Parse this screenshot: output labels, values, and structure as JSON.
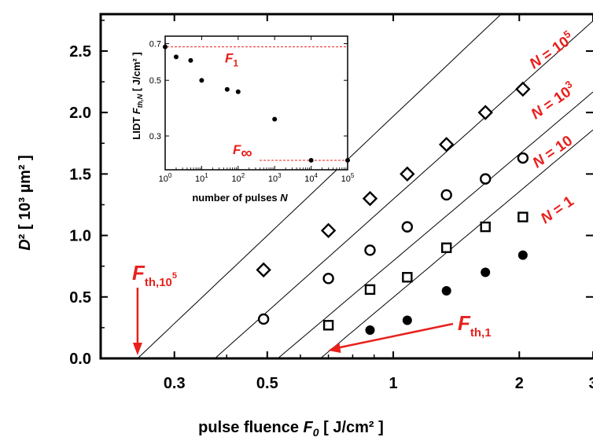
{
  "colors": {
    "annotation": "#e8201c",
    "ink": "#000000"
  },
  "chart_data": [
    {
      "type": "scatter",
      "xscale": "log",
      "xlabel_prefix": "pulse fluence ",
      "xlabel_var": "F",
      "xlabel_sub": "0",
      "xlabel_unit": " [ J/cm² ]",
      "ylabel_var": "D",
      "ylabel_rest": "² [ 10³ µm² ]",
      "xlim": [
        0.2,
        3.0
      ],
      "ylim": [
        0,
        2.8
      ],
      "xticks": [
        {
          "value": 0.3,
          "label": "0.3"
        },
        {
          "value": 0.5,
          "label": "0.5"
        },
        {
          "value": 1,
          "label": "1"
        },
        {
          "value": 2,
          "label": "2"
        },
        {
          "value": 3,
          "label": "3"
        }
      ],
      "yticks": [
        {
          "value": 0.0,
          "label": "0.0"
        },
        {
          "value": 0.5,
          "label": "0.5"
        },
        {
          "value": 1.0,
          "label": "1.0"
        },
        {
          "value": 1.5,
          "label": "1.5"
        },
        {
          "value": 2.0,
          "label": "2.0"
        },
        {
          "value": 2.5,
          "label": "2.5"
        }
      ],
      "series": [
        {
          "name": "N = 1",
          "label_n": "1",
          "marker": "filled-circle",
          "points": [
            [
              0.88,
              0.23
            ],
            [
              1.08,
              0.31
            ],
            [
              1.34,
              0.55
            ],
            [
              1.66,
              0.7
            ],
            [
              2.04,
              0.84
            ]
          ],
          "fit": {
            "threshold": 0.67,
            "slope": 1.24
          }
        },
        {
          "name": "N = 10",
          "label_n": "10",
          "marker": "square",
          "points": [
            [
              0.7,
              0.27
            ],
            [
              0.88,
              0.56
            ],
            [
              1.08,
              0.66
            ],
            [
              1.34,
              0.9
            ],
            [
              1.66,
              1.07
            ],
            [
              2.04,
              1.15
            ]
          ],
          "fit": {
            "threshold": 0.53,
            "slope": 1.25
          }
        },
        {
          "name": "N = 10³",
          "label_n": "10",
          "label_exp": "3",
          "marker": "open-circle",
          "points": [
            [
              0.49,
              0.32
            ],
            [
              0.7,
              0.65
            ],
            [
              0.88,
              0.88
            ],
            [
              1.08,
              1.07
            ],
            [
              1.34,
              1.33
            ],
            [
              1.66,
              1.46
            ],
            [
              2.04,
              1.63
            ]
          ],
          "fit": {
            "threshold": 0.375,
            "slope": 1.32
          }
        },
        {
          "name": "N = 10⁵",
          "label_n": "10",
          "label_exp": "5",
          "marker": "diamond",
          "points": [
            [
              0.49,
              0.72
            ],
            [
              0.7,
              1.04
            ],
            [
              0.88,
              1.3
            ],
            [
              1.08,
              1.5
            ],
            [
              1.34,
              1.74
            ],
            [
              1.66,
              2.0
            ],
            [
              2.04,
              2.19
            ]
          ],
          "fit": {
            "threshold": 0.245,
            "slope": 1.4
          }
        }
      ],
      "annotations": {
        "fth_high": {
          "base": "F",
          "sub": "th,10",
          "sup": "5",
          "x": 0.245
        },
        "fth_low": {
          "base": "F",
          "sub": "th,1",
          "x": 0.67
        }
      }
    },
    {
      "type": "scatter",
      "xscale": "log",
      "yscale": "log",
      "xlabel": "number of pulses N",
      "xlabel_prefix": "number of pulses ",
      "xlabel_var": "N",
      "ylabel_prefix": "LIDT ",
      "ylabel_var": "F",
      "ylabel_sub": "th,N",
      "ylabel_unit": " [ J/cm² ]",
      "xlim": [
        1,
        100000
      ],
      "ylim": [
        0.22,
        0.75
      ],
      "xticks": [
        {
          "value": 1,
          "base": "10",
          "exp": "0"
        },
        {
          "value": 10,
          "base": "10",
          "exp": "1"
        },
        {
          "value": 100,
          "base": "10",
          "exp": "2"
        },
        {
          "value": 1000,
          "base": "10",
          "exp": "3"
        },
        {
          "value": 10000,
          "base": "10",
          "exp": "4"
        },
        {
          "value": 100000,
          "base": "10",
          "exp": "5"
        }
      ],
      "yticks": [
        {
          "value": 0.3,
          "label": "0.3"
        },
        {
          "value": 0.5,
          "label": "0.5"
        },
        {
          "value": 0.7,
          "label": "0.7"
        }
      ],
      "points": [
        [
          1,
          0.68
        ],
        [
          2,
          0.62
        ],
        [
          5,
          0.6
        ],
        [
          10,
          0.5
        ],
        [
          50,
          0.46
        ],
        [
          100,
          0.45
        ],
        [
          1000,
          0.35
        ],
        [
          10000,
          0.24
        ],
        [
          100000,
          0.24
        ]
      ],
      "reference_lines": [
        {
          "name": "F1",
          "label_base": "F",
          "label_sub": "1",
          "y": 0.68
        },
        {
          "name": "Finf",
          "label_base": "F",
          "label_sub": "∞",
          "y": 0.24
        }
      ]
    }
  ]
}
